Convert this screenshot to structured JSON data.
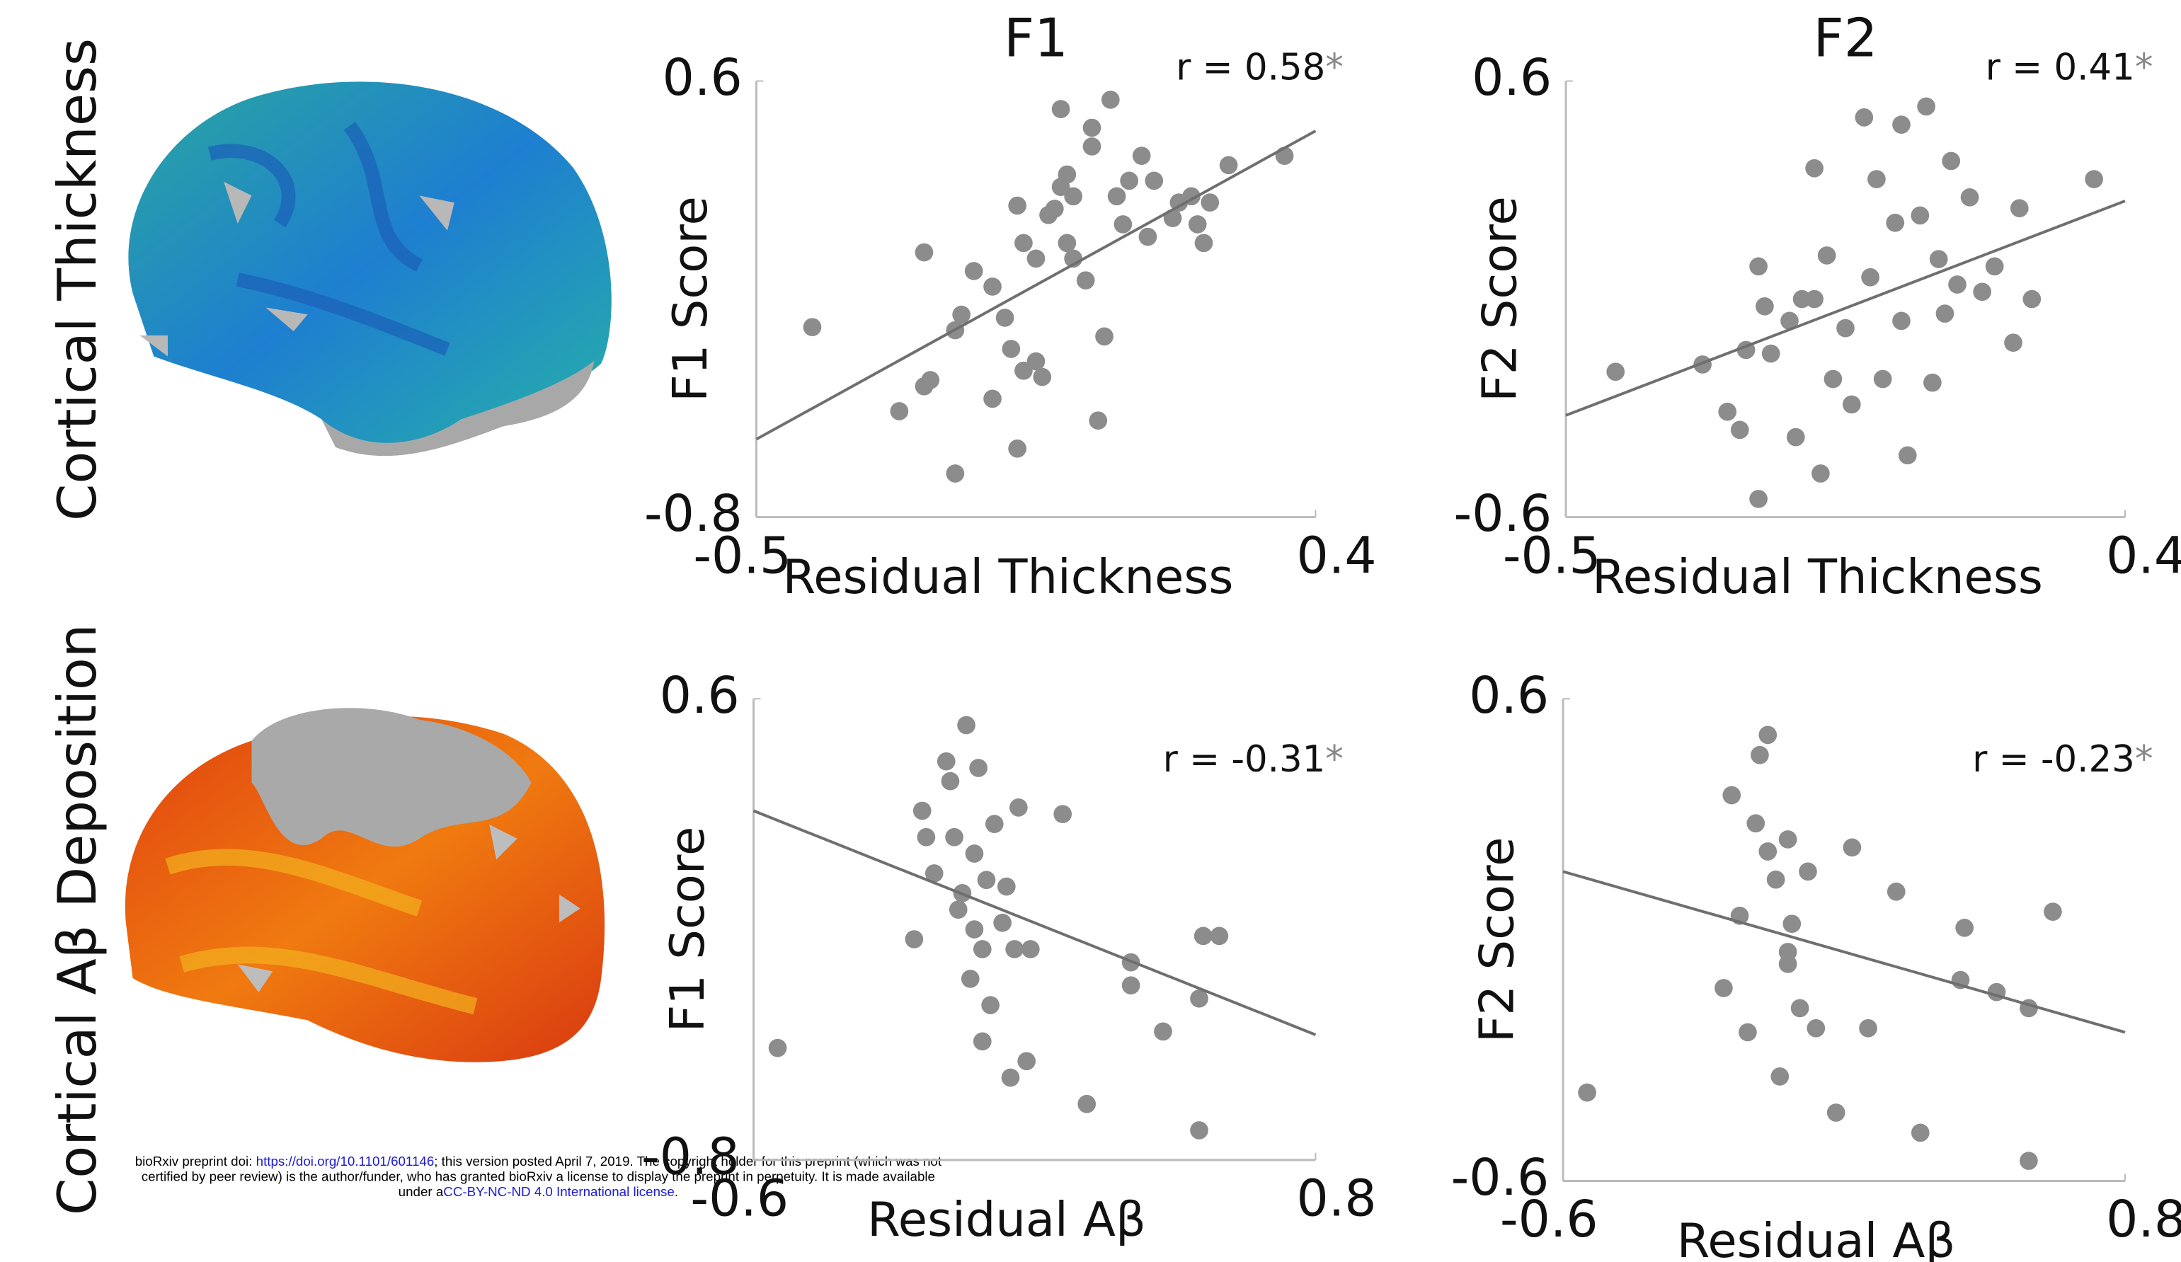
{
  "row_labels": [
    "Cortical Thickness",
    "Cortical Aβ Deposition"
  ],
  "footer": {
    "doi_prefix": "bioRxiv preprint doi: ",
    "doi": "https://doi.org/10.1101/601146",
    "line1_rest": "; this version posted April 7, 2019. The copyright holder for this preprint (which was not",
    "line2": "certified by peer review) is the author/funder, who has granted bioRxiv a license to display the preprint in perpetuity. It is made available",
    "line3_prefix": "under a",
    "license": "CC-BY-NC-ND 4.0 International license",
    "line3_suffix": "."
  },
  "chart_data": [
    {
      "type": "scatter",
      "title": "F1",
      "annotation": "r = 0.58",
      "significance": "*",
      "xlabel": "Residual Thickness",
      "ylabel": "F1 Score",
      "color": "#8c8c8c",
      "xlim": [
        -0.5,
        0.4
      ],
      "xticks": [
        -0.5,
        0.4
      ],
      "ylim": [
        -0.8,
        0.6
      ],
      "yticks": [
        -0.8,
        0.6
      ],
      "x": [
        -0.41,
        -0.23,
        -0.27,
        -0.23,
        -0.22,
        -0.18,
        -0.18,
        -0.17,
        -0.15,
        -0.12,
        -0.12,
        -0.1,
        -0.09,
        -0.08,
        -0.07,
        -0.05,
        -0.04,
        -0.08,
        -0.07,
        -0.05,
        -0.03,
        -0.01,
        -0.01,
        0.0,
        0.01,
        0.03,
        0.04,
        0.04,
        0.05,
        0.06,
        0.07,
        0.08,
        0.09,
        0.1,
        0.12,
        0.13,
        0.14,
        0.17,
        0.18,
        0.2,
        0.21,
        0.22,
        0.23,
        0.26,
        0.35,
        0.0,
        0.01,
        -0.02
      ],
      "values": [
        -0.19,
        0.05,
        -0.46,
        -0.38,
        -0.36,
        -0.66,
        -0.2,
        -0.15,
        -0.01,
        -0.42,
        -0.06,
        -0.16,
        -0.26,
        -0.58,
        -0.33,
        -0.3,
        -0.35,
        0.2,
        0.08,
        0.03,
        0.17,
        0.51,
        0.26,
        0.08,
        0.03,
        -0.04,
        0.45,
        0.39,
        -0.49,
        -0.22,
        0.54,
        0.23,
        0.14,
        0.28,
        0.36,
        0.1,
        0.28,
        0.16,
        0.21,
        0.23,
        0.14,
        0.08,
        0.21,
        0.33,
        0.36,
        0.3,
        0.23,
        0.19
      ],
      "trend": {
        "x": [
          -0.5,
          0.4
        ],
        "y": [
          -0.55,
          0.44
        ]
      }
    },
    {
      "type": "scatter",
      "title": "F2",
      "annotation": "r = 0.41",
      "significance": "*",
      "xlabel": "Residual Thickness",
      "ylabel": "F2 Score",
      "color": "#8c8c8c",
      "xlim": [
        -0.5,
        0.4
      ],
      "xticks": [
        -0.5,
        0.4
      ],
      "ylim": [
        -0.6,
        0.6
      ],
      "yticks": [
        -0.6,
        0.6
      ],
      "x": [
        -0.42,
        -0.28,
        -0.24,
        -0.22,
        -0.19,
        -0.21,
        -0.18,
        -0.17,
        -0.13,
        -0.12,
        -0.1,
        -0.1,
        -0.09,
        -0.08,
        -0.07,
        -0.05,
        -0.04,
        -0.02,
        -0.01,
        0.0,
        0.01,
        0.03,
        0.04,
        0.04,
        0.05,
        0.07,
        0.08,
        0.09,
        0.1,
        0.11,
        0.12,
        0.13,
        0.15,
        0.17,
        0.19,
        0.22,
        0.23,
        0.25,
        0.35,
        -0.19,
        -0.14
      ],
      "values": [
        -0.2,
        -0.18,
        -0.31,
        -0.36,
        -0.55,
        -0.14,
        -0.02,
        -0.15,
        -0.38,
        0.0,
        0.0,
        0.36,
        -0.48,
        0.12,
        -0.22,
        -0.08,
        -0.29,
        0.5,
        0.06,
        0.33,
        -0.22,
        0.21,
        0.48,
        -0.06,
        -0.43,
        0.23,
        0.53,
        -0.23,
        0.11,
        -0.04,
        0.38,
        0.04,
        0.28,
        0.02,
        0.09,
        -0.12,
        0.25,
        0.0,
        0.33,
        0.09,
        -0.06
      ],
      "trend": {
        "x": [
          -0.5,
          0.4
        ],
        "y": [
          -0.32,
          0.27
        ]
      }
    },
    {
      "type": "scatter",
      "annotation": "r = -0.31",
      "significance": "*",
      "xlabel": "Residual Aβ",
      "ylabel": "F1 Score",
      "color": "#8c8c8c",
      "xlim": [
        -0.6,
        0.8
      ],
      "xticks": [
        -0.6,
        0.8
      ],
      "ylim": [
        -0.8,
        0.6
      ],
      "yticks": [
        -0.8,
        0.6
      ],
      "x": [
        -0.54,
        -0.2,
        -0.18,
        -0.17,
        -0.15,
        -0.12,
        -0.11,
        -0.09,
        -0.07,
        -0.06,
        -0.05,
        -0.04,
        -0.03,
        -0.03,
        -0.02,
        -0.01,
        0.0,
        0.02,
        0.03,
        0.04,
        0.05,
        0.06,
        0.08,
        0.09,
        0.17,
        0.23,
        0.34,
        0.34,
        0.42,
        0.51,
        0.52,
        0.56,
        0.51,
        -0.1,
        -0.08,
        -0.05
      ],
      "values": [
        -0.46,
        -0.13,
        0.26,
        0.18,
        0.07,
        0.41,
        0.35,
        -0.04,
        0.52,
        -0.25,
        0.13,
        0.39,
        -0.44,
        -0.16,
        0.05,
        -0.33,
        0.22,
        -0.08,
        0.03,
        -0.55,
        -0.16,
        0.27,
        -0.5,
        -0.16,
        0.25,
        -0.63,
        -0.2,
        -0.27,
        -0.41,
        -0.31,
        -0.12,
        -0.12,
        -0.71,
        0.18,
        0.01,
        -0.1
      ],
      "trend": {
        "x": [
          -0.6,
          0.8
        ],
        "y": [
          0.26,
          -0.42
        ]
      }
    },
    {
      "type": "scatter",
      "annotation": "r = -0.23",
      "significance": "*",
      "xlabel": "Residual Aβ",
      "ylabel": "F2 Score",
      "color": "#8c8c8c",
      "xlim": [
        -0.6,
        0.8
      ],
      "xticks": [
        -0.6,
        0.8
      ],
      "ylim": [
        -0.6,
        0.6
      ],
      "yticks": [
        -0.6,
        0.6
      ],
      "x": [
        -0.54,
        -0.2,
        -0.18,
        -0.16,
        -0.14,
        -0.12,
        -0.11,
        -0.09,
        -0.07,
        -0.06,
        -0.04,
        -0.04,
        -0.03,
        -0.01,
        0.01,
        0.03,
        0.08,
        0.12,
        0.16,
        0.23,
        0.29,
        0.39,
        0.4,
        0.48,
        0.56,
        0.56,
        0.62,
        -0.09,
        -0.04
      ],
      "values": [
        -0.38,
        -0.12,
        0.36,
        0.06,
        -0.23,
        0.29,
        0.46,
        0.51,
        0.15,
        -0.34,
        -0.06,
        0.25,
        0.04,
        -0.17,
        0.17,
        -0.22,
        -0.43,
        0.23,
        -0.22,
        0.12,
        -0.48,
        -0.1,
        0.03,
        -0.13,
        -0.17,
        -0.55,
        0.07,
        0.22,
        -0.03
      ],
      "trend": {
        "x": [
          -0.6,
          0.8
        ],
        "y": [
          0.17,
          -0.23
        ]
      }
    }
  ]
}
